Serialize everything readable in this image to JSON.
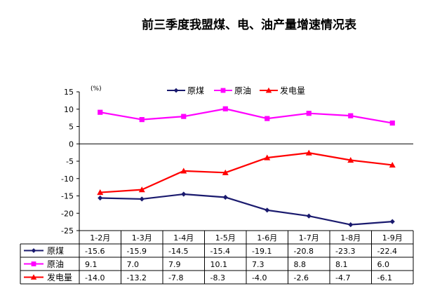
{
  "chart_data": {
    "type": "line",
    "title": "前三季度我盟煤、电、油产量增速情况表",
    "unit_label": "(%)",
    "xlabel": "",
    "ylabel": "",
    "ylim": [
      -25,
      15
    ],
    "yticks": [
      15,
      10,
      5,
      0,
      -5,
      -10,
      -15,
      -20,
      -25
    ],
    "grid": false,
    "legend_position": "top-right",
    "categories": [
      "1-2月",
      "1-3月",
      "1-4月",
      "1-5月",
      "1-6月",
      "1-7月",
      "1-8月",
      "1-9月"
    ],
    "series": [
      {
        "name": "原煤",
        "color": "#1a1a6e",
        "marker": "diamond",
        "values": [
          -15.6,
          -15.9,
          -14.5,
          -15.4,
          -19.1,
          -20.8,
          -23.3,
          -22.4
        ],
        "table_labels": [
          "-15.6",
          "-15.9",
          "-14.5",
          "-15.4",
          "-19.1",
          "-20.8",
          "-23.3",
          "-22.4"
        ]
      },
      {
        "name": "原油",
        "color": "#ff00ff",
        "marker": "square",
        "values": [
          9.1,
          7.0,
          7.9,
          10.1,
          7.3,
          8.8,
          8.1,
          6.0
        ],
        "table_labels": [
          "9.1",
          "7.0",
          "7.9",
          "10.1",
          "7.3",
          "8.8",
          "8.1",
          "6.0"
        ]
      },
      {
        "name": "发电量",
        "color": "#ff0000",
        "marker": "triangle",
        "values": [
          -14.0,
          -13.2,
          -7.8,
          -8.3,
          -4.0,
          -2.6,
          -4.7,
          -6.1
        ],
        "table_labels": [
          "-14.0",
          "-13.2",
          "-7.8",
          "-8.3",
          "-4.0",
          "-2.6",
          "-4.7",
          "-6.1"
        ]
      }
    ],
    "legend_order": [
      0,
      1,
      2
    ],
    "table_order": [
      0,
      1,
      2
    ]
  }
}
